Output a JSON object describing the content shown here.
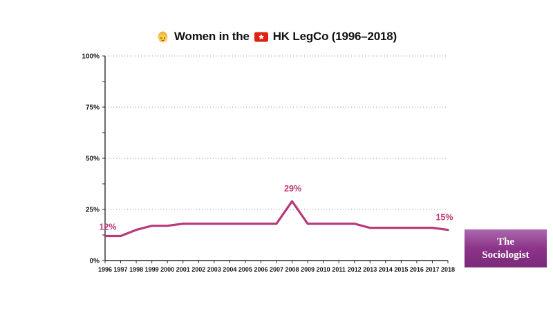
{
  "title": {
    "part1": "Women in the",
    "part2": "HK LegCo (1996–2018)",
    "icons": {
      "woman_emoji": "👧",
      "hk_flag_emoji": "🇭🇰"
    }
  },
  "chart_data": {
    "type": "line",
    "title": "👧 Women in the 🇭🇰 HK LegCo (1996–2018)",
    "x": [
      1996,
      1997,
      1998,
      1999,
      2000,
      2001,
      2002,
      2003,
      2004,
      2005,
      2006,
      2007,
      2008,
      2009,
      2010,
      2011,
      2012,
      2013,
      2014,
      2015,
      2016,
      2017,
      2018
    ],
    "values": [
      12,
      12,
      15,
      17,
      17,
      18,
      18,
      18,
      18,
      18,
      18,
      18,
      29,
      18,
      18,
      18,
      18,
      16,
      16,
      16,
      16,
      16,
      15
    ],
    "unit": "%",
    "ylim": [
      0,
      100
    ],
    "yticks": [
      0,
      25,
      50,
      75,
      100
    ],
    "ytick_labels": [
      "0%",
      "25%",
      "50%",
      "75%",
      "100%"
    ],
    "minor_yticks": [
      12.5,
      37.5,
      62.5,
      87.5
    ],
    "grid": "horizontal dotted at major y ticks",
    "legend": "none",
    "line_color": "#b83a7a",
    "label_color": "#c23575",
    "axis_color": "#2b2b2b",
    "grid_color": "#9e9e9e",
    "annotations": [
      {
        "x": 1996,
        "value": 12,
        "label": "12%"
      },
      {
        "x": 2008,
        "value": 29,
        "label": "29%"
      },
      {
        "x": 2018,
        "value": 15,
        "label": "15%"
      }
    ]
  },
  "logo": {
    "text": "The Sociologist",
    "text_color": "#ffffff",
    "bg_gradient_top": "#ab68ad",
    "bg_gradient_mid": "#8c3489",
    "bg_gradient_bottom": "#7b2a7a"
  }
}
